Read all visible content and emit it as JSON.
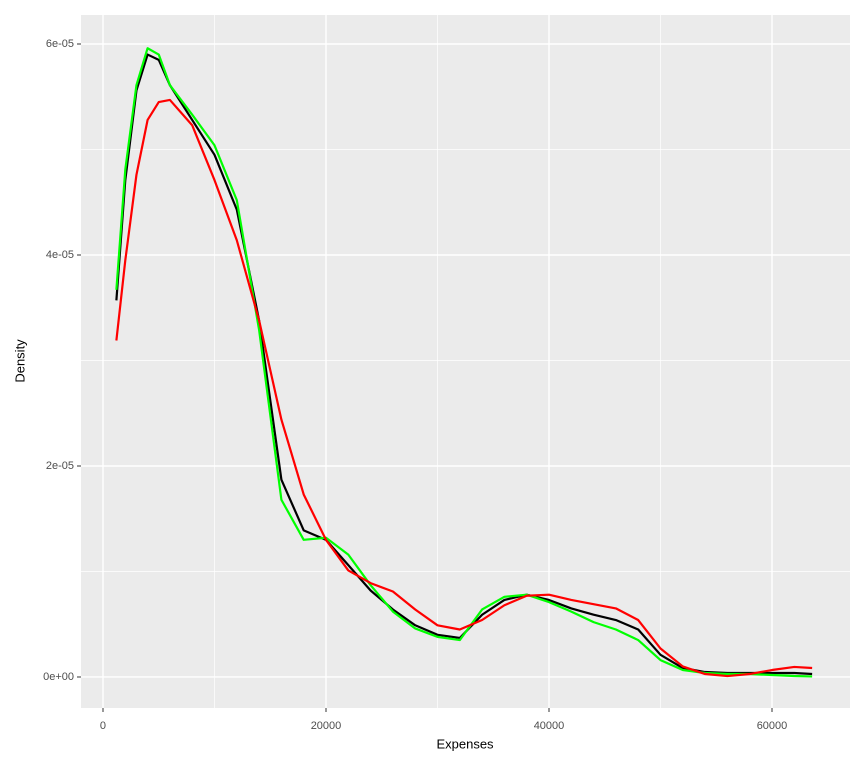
{
  "chart_data": {
    "type": "line",
    "x_label": "Expenses",
    "y_label": "Density",
    "x": [
      1200,
      2000,
      3000,
      4000,
      5000,
      6000,
      8000,
      10000,
      12000,
      14000,
      16000,
      18000,
      20000,
      22000,
      24000,
      26000,
      28000,
      30000,
      32000,
      34000,
      36000,
      38000,
      40000,
      42000,
      44000,
      46000,
      48000,
      50000,
      52000,
      54000,
      56000,
      58000,
      60000,
      62000,
      63600
    ],
    "series": [
      {
        "color": "#000000",
        "values": [
          3.57e-05,
          4.71e-05,
          5.56e-05,
          5.9e-05,
          5.85e-05,
          5.61e-05,
          5.28e-05,
          4.95e-05,
          4.43e-05,
          3.38e-05,
          1.87e-05,
          1.39e-05,
          1.3e-05,
          1.06e-05,
          8.2e-06,
          6.4e-06,
          4.9e-06,
          4e-06,
          3.7e-06,
          5.9e-06,
          7.3e-06,
          7.8e-06,
          7.3e-06,
          6.5e-06,
          5.9e-06,
          5.4e-06,
          4.5e-06,
          2.1e-06,
          8.5e-07,
          4.7e-07,
          3.8e-07,
          3.8e-07,
          3.8e-07,
          3.8e-07,
          2.8e-07
        ]
      },
      {
        "color": "#00ff00",
        "values": [
          3.67e-05,
          4.81e-05,
          5.61e-05,
          5.96e-05,
          5.9e-05,
          5.61e-05,
          5.33e-05,
          5.04e-05,
          4.52e-05,
          3.29e-05,
          1.68e-05,
          1.3e-05,
          1.32e-05,
          1.16e-05,
          8.7e-06,
          6.2e-06,
          4.6e-06,
          3.8e-06,
          3.5e-06,
          6.4e-06,
          7.6e-06,
          7.8e-06,
          7.1e-06,
          6.2e-06,
          5.2e-06,
          4.5e-06,
          3.5e-06,
          1.6e-06,
          6.6e-07,
          3.8e-07,
          2.8e-07,
          2.8e-07,
          1.9e-07,
          9e-08,
          5e-08
        ]
      },
      {
        "color": "#ff0000",
        "values": [
          3.19e-05,
          3.95e-05,
          4.76e-05,
          5.28e-05,
          5.45e-05,
          5.47e-05,
          5.23e-05,
          4.71e-05,
          4.14e-05,
          3.38e-05,
          2.44e-05,
          1.73e-05,
          1.3e-05,
          1.01e-05,
          8.9e-06,
          8.1e-06,
          6.4e-06,
          4.9e-06,
          4.5e-06,
          5.4e-06,
          6.8e-06,
          7.7e-06,
          7.8e-06,
          7.3e-06,
          6.9e-06,
          6.5e-06,
          5.4e-06,
          2.7e-06,
          1e-06,
          2.8e-07,
          9e-08,
          2.8e-07,
          6.6e-07,
          9.5e-07,
          8.5e-07
        ]
      }
    ],
    "xlim": [
      -1973,
      66996
    ],
    "xticks": [
      0,
      20000,
      40000,
      60000
    ],
    "x_minor_ticks": [
      10000,
      30000,
      50000
    ],
    "ylim": [
      -2.94e-06,
      6.275e-05
    ],
    "yticks": [
      {
        "value": 0,
        "label": "0e+00"
      },
      {
        "value": 2e-05,
        "label": "2e-05"
      },
      {
        "value": 4e-05,
        "label": "4e-05"
      },
      {
        "value": 6e-05,
        "label": "6e-05"
      }
    ],
    "y_minor_ticks": [
      1e-05,
      3e-05,
      5e-05
    ],
    "grid": true
  }
}
